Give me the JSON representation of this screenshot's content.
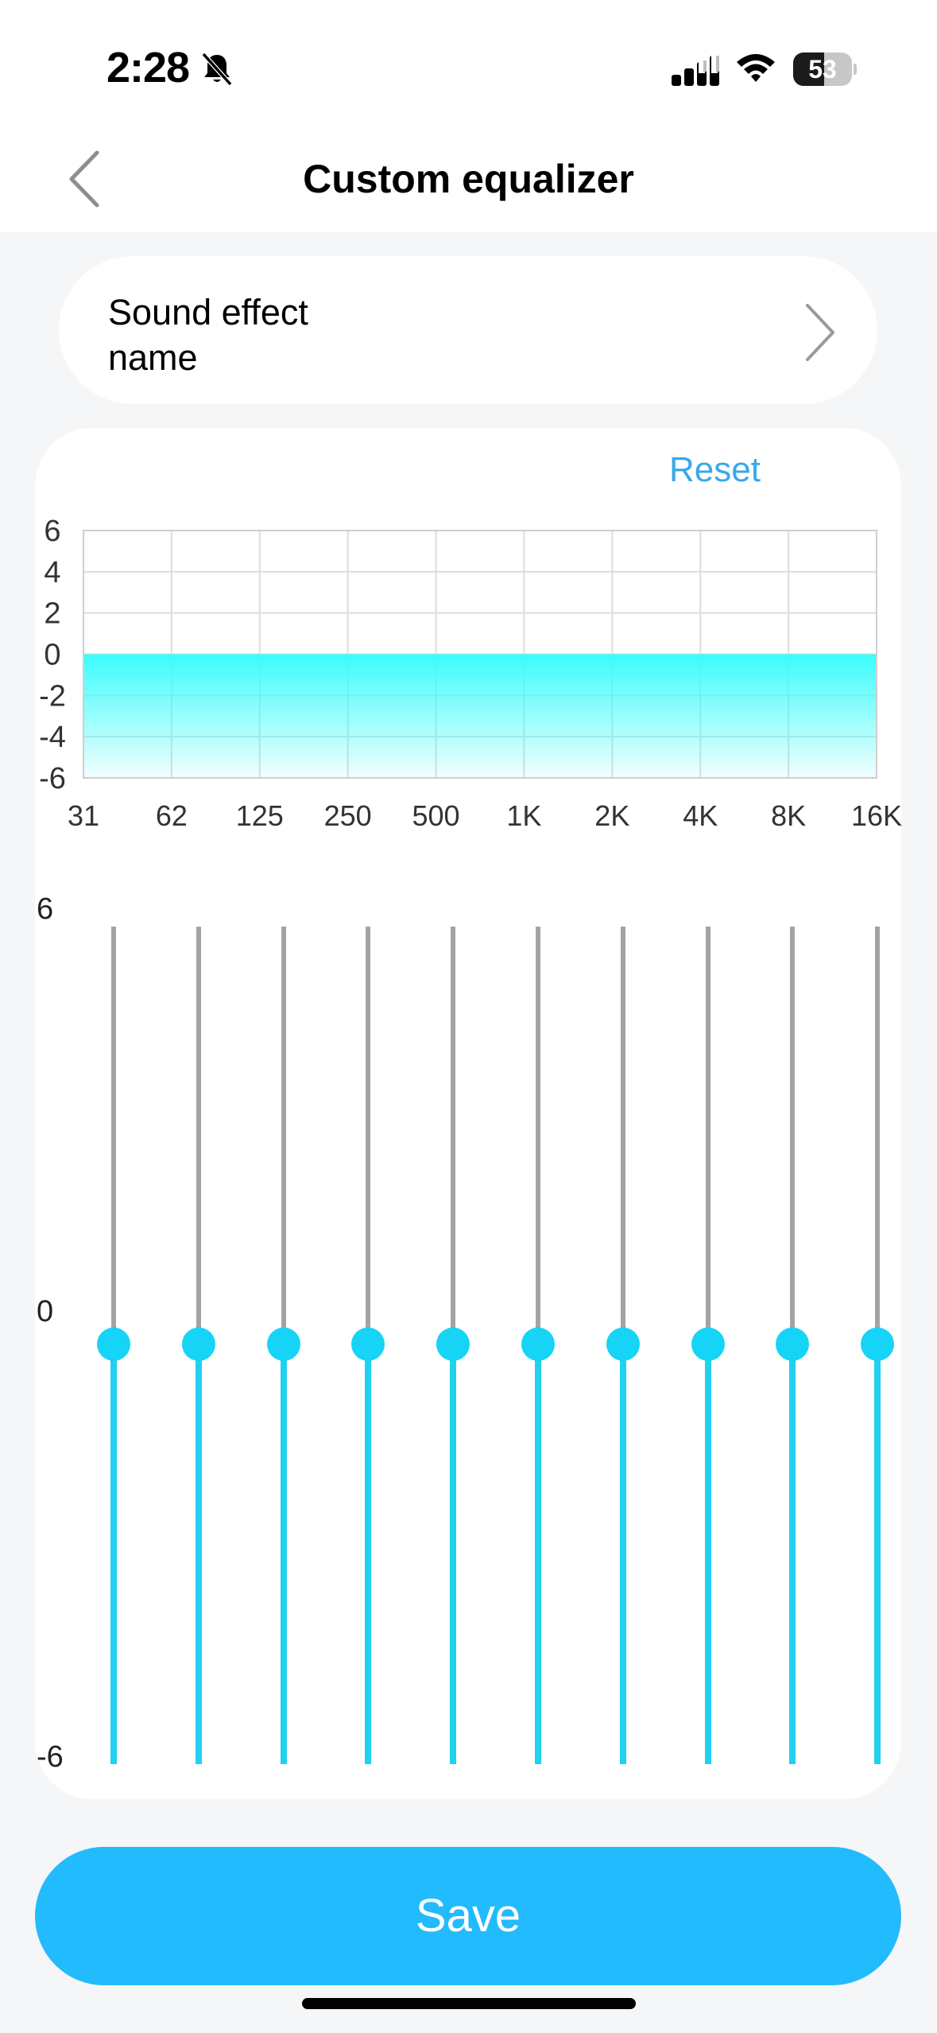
{
  "status_bar": {
    "time": "2:28",
    "battery": "53",
    "battery_percent": 53
  },
  "header": {
    "title": "Custom equalizer",
    "back_icon": "chevron-left-icon"
  },
  "sound_effect": {
    "label": "Sound effect name",
    "chevron_icon": "chevron-right-icon"
  },
  "reset_label": "Reset",
  "chart_data": {
    "type": "area",
    "categories": [
      "31",
      "62",
      "125",
      "250",
      "500",
      "1K",
      "2K",
      "4K",
      "8K",
      "16K"
    ],
    "values": [
      0,
      0,
      0,
      0,
      0,
      0,
      0,
      0,
      0,
      0
    ],
    "y_ticks": [
      "6",
      "4",
      "2",
      "0",
      "-2",
      "-4",
      "-6"
    ],
    "ylim": [
      -6,
      6
    ],
    "grid": true,
    "fill_color": "#3afcfc"
  },
  "sliders": {
    "max_label": "6",
    "mid_label": "0",
    "min_label": "-6",
    "bands": [
      "31",
      "62",
      "125",
      "250",
      "500",
      "1K",
      "2K",
      "4K",
      "8K",
      "16K"
    ],
    "values": [
      0,
      0,
      0,
      0,
      0,
      0,
      0,
      0,
      0,
      0
    ]
  },
  "save_label": "Save",
  "colors": {
    "accent": "#22bbfd",
    "reset_text": "#37a8ea",
    "slider_active": "#22d0f0",
    "slider_inactive": "#a3a3a3",
    "knob": "#15d4f6"
  }
}
